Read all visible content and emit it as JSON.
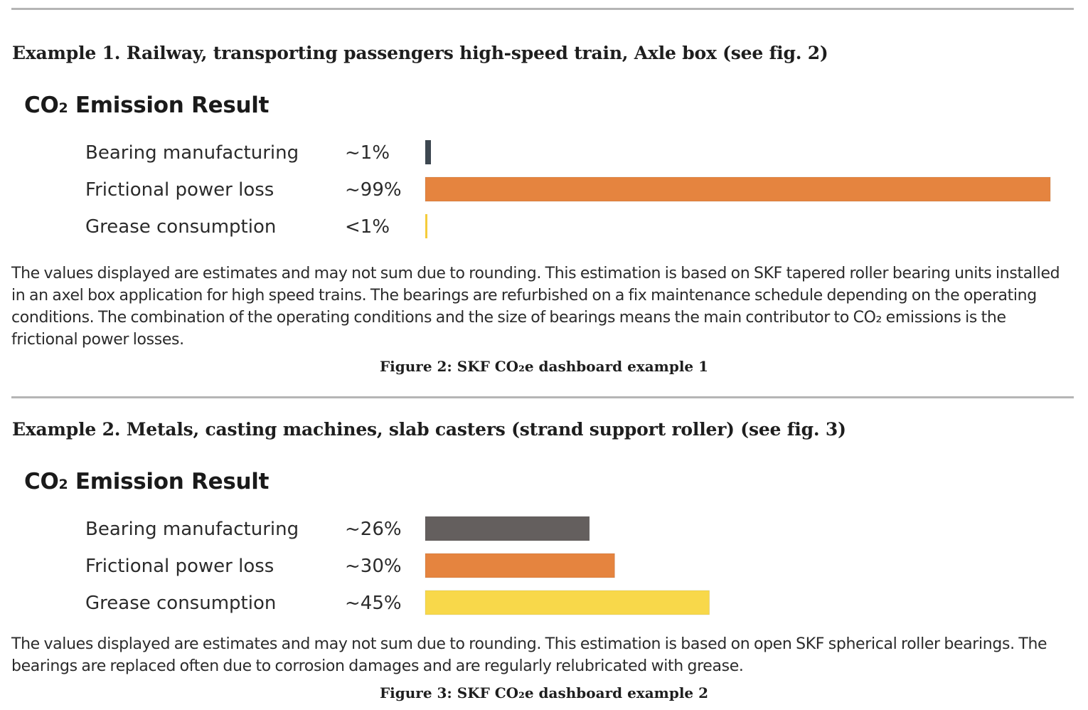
{
  "examples": [
    {
      "heading": "Example 1. Railway, transporting passengers high-speed train, Axle box (see fig. 2)",
      "chart_title_main": "CO",
      "chart_title_sub": "2",
      "chart_title_rest": " Emission Result",
      "note": "The values displayed are estimates and may not sum due to rounding. This estimation is based on SKF tapered roller bearing units installed in an axel box application for high speed trains. The bearings are refurbished on a fix maintenance schedule depending on the operating conditions. The combination of the operating conditions and the size of bearings means the main contributor to CO₂ emissions is the frictional power losses.",
      "caption": "Figure 2: SKF CO₂e dashboard example 1"
    },
    {
      "heading": "Example 2. Metals, casting machines, slab casters (strand support roller) (see fig. 3)",
      "chart_title_main": "CO",
      "chart_title_sub": "2",
      "chart_title_rest": " Emission Result",
      "note": "The values displayed are estimates and may not sum due to rounding. This estimation is based on open SKF spherical roller bearings. The bearings are replaced often due to corrosion damages and are regularly relubricated with grease.",
      "caption": "Figure 3: SKF CO₂e dashboard example 2"
    }
  ],
  "chart_data": [
    {
      "type": "bar",
      "orientation": "horizontal",
      "title": "CO₂ Emission Result",
      "categories": [
        "Bearing manufacturing",
        "Frictional power loss",
        "Grease consumption"
      ],
      "value_labels": [
        "~1%",
        "~99%",
        "<1%"
      ],
      "values": [
        1,
        99,
        0.5
      ],
      "colors": [
        "#3d4750",
        "#e5843f",
        "#f5cc3b"
      ],
      "xlim": [
        0,
        100
      ],
      "grid": false,
      "xlabel": "",
      "ylabel": ""
    },
    {
      "type": "bar",
      "orientation": "horizontal",
      "title": "CO₂ Emission Result",
      "categories": [
        "Bearing manufacturing",
        "Frictional power loss",
        "Grease consumption"
      ],
      "value_labels": [
        "~26%",
        "~30%",
        "~45%"
      ],
      "values": [
        26,
        30,
        45
      ],
      "colors": [
        "#645f5e",
        "#e5843f",
        "#f8d84a"
      ],
      "xlim": [
        0,
        100
      ],
      "grid": false,
      "xlabel": "",
      "ylabel": ""
    }
  ]
}
